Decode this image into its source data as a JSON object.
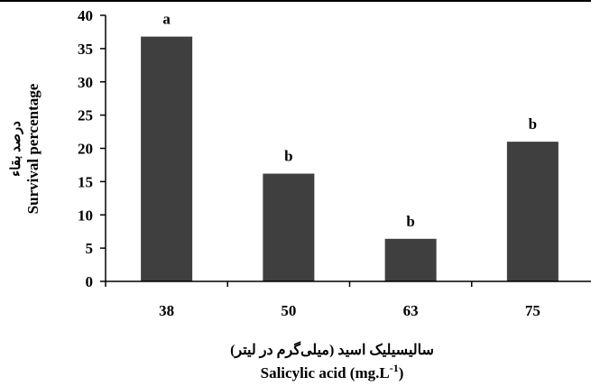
{
  "chart_data": {
    "type": "bar",
    "categories": [
      "38",
      "50",
      "63",
      "75"
    ],
    "values": [
      36.8,
      16.2,
      6.4,
      21.0
    ],
    "significance_letters": [
      "a",
      "b",
      "b",
      "b"
    ],
    "ylim": [
      0,
      40
    ],
    "yticks": [
      0,
      5,
      10,
      15,
      20,
      25,
      30,
      35,
      40
    ],
    "ylabel_fa": "درصد بقاء",
    "ylabel": "Survival  percentage",
    "xlabel_fa": "سالیسیلیک اسید (میلی‌گرم در لیتر)",
    "xlabel": "Salicylic acid (mg.L",
    "xlabel_superscript": "-1",
    "xlabel_close": ")",
    "bar_color": "#3f3f3f",
    "grid": false,
    "legend": "none"
  }
}
